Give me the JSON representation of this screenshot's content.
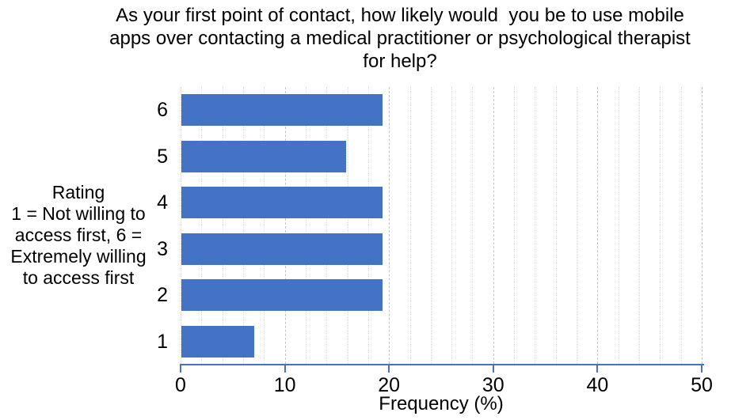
{
  "page": {
    "background": "#ffffff"
  },
  "chart_data": {
    "type": "bar",
    "orientation": "horizontal",
    "title": "As your first point of contact, how likely would  you be to use mobile apps over contacting a medical practitioner or psychological therapist for help?",
    "title_lines": [
      "As your first point of contact, how likely would  you be to use mobile",
      "apps over contacting a medical practitioner or psychological therapist",
      "for help?"
    ],
    "categories": [
      "6",
      "5",
      "4",
      "3",
      "2",
      "1"
    ],
    "values": [
      19.3,
      15.8,
      19.3,
      19.3,
      19.3,
      7.0
    ],
    "xlabel": "Frequency (%)",
    "ylabel": "Rating 1 = Not willing to access first, 6 = Extremely willing to access first",
    "ylabel_lines": [
      "Rating",
      "1 = Not willing to",
      "access first, 6 =",
      "Extremely willing",
      "to access first"
    ],
    "xlim": [
      0,
      50
    ],
    "x_major_step": 10,
    "x_minor_step": 2,
    "x_tick_labels": [
      "0",
      "10",
      "20",
      "30",
      "40",
      "50"
    ],
    "legend": "none",
    "grid": "vertical, minor every 2 and major every 10",
    "colors": {
      "bar": "#4472C4",
      "axis": "#4472C4",
      "major_grid": "#C2C2C2",
      "minor_grid": "#DEDEDE",
      "text": "#000000",
      "background": "#FFFFFF"
    }
  }
}
